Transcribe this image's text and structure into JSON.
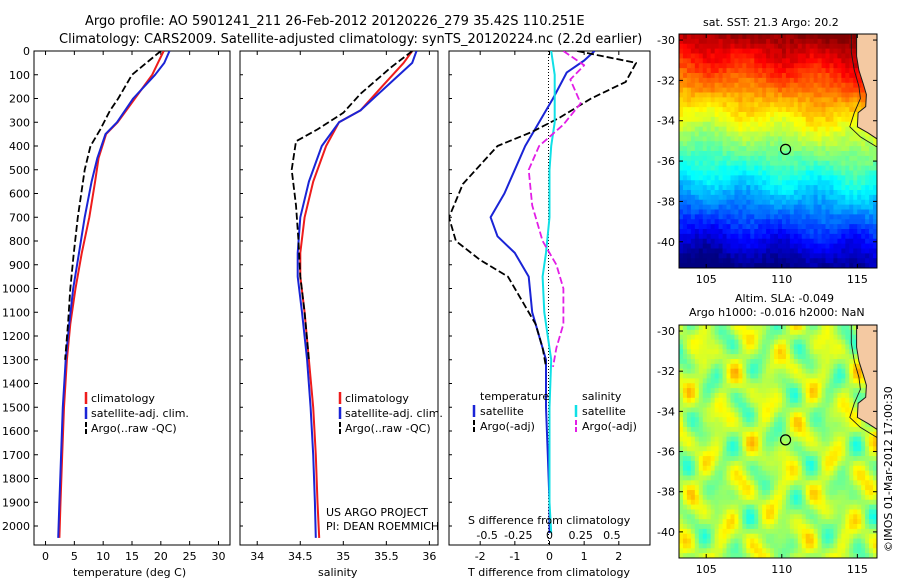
{
  "title_line1": "Argo profile: AO 5901241_211 26-Feb-2012 20120226_279 35.42S 110.251E",
  "title_line2": "Climatology: CARS2009. Satellite-adjusted climatology: synTS_20120224.nc (2.2d earlier)",
  "credit": "©IMOS 01-Mar-2012 17:00:30",
  "colors": {
    "clim": "#ee1c1c",
    "sat": "#1a24d6",
    "argo": "#000000",
    "sat_s": "#10e0e6",
    "argo_s": "#e21ee6",
    "grid": "#555555",
    "land": "#f4c9a2",
    "coast": "#1a1a1a"
  },
  "chart_data": [
    {
      "type": "line",
      "name": "temperature",
      "xlabel": "temperature (deg C)",
      "ylabel": "",
      "xlim": [
        -2,
        32
      ],
      "ylim": [
        2080,
        0
      ],
      "xticks": [
        0,
        5,
        10,
        15,
        20,
        25,
        30
      ],
      "yticks": [
        0,
        100,
        200,
        300,
        400,
        500,
        600,
        700,
        800,
        900,
        1000,
        1100,
        1200,
        1300,
        1400,
        1500,
        1600,
        1700,
        1800,
        1900,
        2000
      ],
      "legend": [
        "climatology",
        "satellite-adj. clim.",
        "Argo(..raw -QC)"
      ],
      "series": [
        {
          "name": "climatology",
          "style": "solid",
          "color": "clim",
          "points": [
            [
              20.5,
              0
            ],
            [
              19.5,
              50
            ],
            [
              18.5,
              100
            ],
            [
              15.5,
              200
            ],
            [
              12.5,
              300
            ],
            [
              10.5,
              350
            ],
            [
              9.2,
              450
            ],
            [
              8.6,
              550
            ],
            [
              7.6,
              700
            ],
            [
              6.3,
              850
            ],
            [
              5.2,
              1000
            ],
            [
              4.3,
              1150
            ],
            [
              3.7,
              1300
            ],
            [
              3.2,
              1500
            ],
            [
              2.9,
              1700
            ],
            [
              2.6,
              1900
            ],
            [
              2.4,
              2050
            ]
          ]
        },
        {
          "name": "satellite-adj. clim.",
          "style": "solid",
          "color": "sat",
          "points": [
            [
              21.5,
              0
            ],
            [
              20.6,
              50
            ],
            [
              19.0,
              100
            ],
            [
              15.2,
              200
            ],
            [
              12.4,
              300
            ],
            [
              10.4,
              350
            ],
            [
              9.0,
              450
            ],
            [
              8.0,
              550
            ],
            [
              6.8,
              700
            ],
            [
              5.8,
              850
            ],
            [
              4.8,
              1000
            ],
            [
              4.1,
              1150
            ],
            [
              3.5,
              1300
            ],
            [
              3.0,
              1500
            ],
            [
              2.7,
              1700
            ],
            [
              2.4,
              1900
            ],
            [
              2.2,
              2050
            ]
          ]
        },
        {
          "name": "Argo(..raw -QC)",
          "style": "dash",
          "color": "argo",
          "points": [
            [
              20.0,
              0
            ],
            [
              18.0,
              40
            ],
            [
              15.0,
              100
            ],
            [
              12.6,
              200
            ],
            [
              11.2,
              250
            ],
            [
              9.5,
              330
            ],
            [
              7.8,
              400
            ],
            [
              6.8,
              500
            ],
            [
              5.6,
              700
            ],
            [
              4.9,
              850
            ],
            [
              4.3,
              1000
            ],
            [
              3.9,
              1150
            ],
            [
              3.4,
              1300
            ]
          ]
        }
      ]
    },
    {
      "type": "line",
      "name": "salinity",
      "xlabel": "salinity",
      "ylabel": "",
      "xlim": [
        33.8,
        36.1
      ],
      "ylim": [
        2080,
        0
      ],
      "xticks": [
        34,
        34.5,
        35,
        35.5,
        36
      ],
      "legend": [
        "climatology",
        "satellite-adj. clim.",
        "Argo(..raw -QC)"
      ],
      "annotation": [
        "US ARGO PROJECT",
        "PI: DEAN ROEMMICH"
      ],
      "series": [
        {
          "name": "climatology",
          "style": "solid",
          "color": "clim",
          "points": [
            [
              35.8,
              0
            ],
            [
              35.7,
              50
            ],
            [
              35.45,
              150
            ],
            [
              35.2,
              250
            ],
            [
              34.95,
              300
            ],
            [
              34.8,
              400
            ],
            [
              34.65,
              550
            ],
            [
              34.55,
              700
            ],
            [
              34.5,
              850
            ],
            [
              34.5,
              950
            ],
            [
              34.55,
              1100
            ],
            [
              34.6,
              1300
            ],
            [
              34.65,
              1500
            ],
            [
              34.68,
              1700
            ],
            [
              34.7,
              1900
            ],
            [
              34.72,
              2050
            ]
          ]
        },
        {
          "name": "satellite-adj. clim.",
          "style": "solid",
          "color": "sat",
          "points": [
            [
              35.85,
              0
            ],
            [
              35.8,
              50
            ],
            [
              35.5,
              150
            ],
            [
              35.2,
              250
            ],
            [
              34.95,
              300
            ],
            [
              34.75,
              400
            ],
            [
              34.6,
              550
            ],
            [
              34.5,
              700
            ],
            [
              34.47,
              850
            ],
            [
              34.47,
              950
            ],
            [
              34.52,
              1100
            ],
            [
              34.58,
              1300
            ],
            [
              34.62,
              1500
            ],
            [
              34.65,
              1700
            ],
            [
              34.67,
              1900
            ],
            [
              34.68,
              2050
            ]
          ]
        },
        {
          "name": "Argo(..raw -QC)",
          "style": "dash",
          "color": "argo",
          "points": [
            [
              35.8,
              0
            ],
            [
              35.55,
              70
            ],
            [
              35.2,
              180
            ],
            [
              35.0,
              260
            ],
            [
              34.7,
              330
            ],
            [
              34.45,
              380
            ],
            [
              34.4,
              500
            ],
            [
              34.45,
              650
            ],
            [
              34.48,
              800
            ],
            [
              34.5,
              950
            ],
            [
              34.55,
              1100
            ],
            [
              34.6,
              1300
            ]
          ]
        }
      ]
    },
    {
      "type": "line",
      "name": "differences",
      "xlabel": "T difference from climatology",
      "xlabel2": "S difference from climatology",
      "xlim": [
        -2.9,
        2.9
      ],
      "ylim": [
        2080,
        0
      ],
      "xticks": [
        -2,
        -1,
        0,
        1,
        2
      ],
      "xticks2": [
        "-0.5",
        "-0.25",
        "0",
        "0.25",
        "0.5"
      ],
      "legend_left_head": "temperature",
      "legend_right_head": "salinity",
      "legend_left": [
        "satellite",
        "Argo(-adj)"
      ],
      "legend_right": [
        "satellite",
        "Argo(-adj)"
      ],
      "series": [
        {
          "name": "temperature satellite",
          "style": "solid",
          "color": "sat",
          "points": [
            [
              1.3,
              0
            ],
            [
              1.0,
              40
            ],
            [
              0.5,
              90
            ],
            [
              0.1,
              200
            ],
            [
              -0.3,
              300
            ],
            [
              -0.7,
              400
            ],
            [
              -1.0,
              500
            ],
            [
              -1.3,
              600
            ],
            [
              -1.7,
              700
            ],
            [
              -1.5,
              780
            ],
            [
              -1.0,
              850
            ],
            [
              -0.6,
              950
            ],
            [
              -0.5,
              1100
            ],
            [
              -0.3,
              1200
            ],
            [
              -0.1,
              1300
            ],
            [
              -0.1,
              1500
            ],
            [
              -0.05,
              1700
            ],
            [
              0.0,
              1900
            ],
            [
              0.0,
              2030
            ]
          ]
        },
        {
          "name": "temperature Argo(-adj)",
          "style": "dash",
          "color": "argo",
          "points": [
            [
              0.8,
              0
            ],
            [
              2.5,
              50
            ],
            [
              2.2,
              130
            ],
            [
              1.2,
              200
            ],
            [
              0.3,
              280
            ],
            [
              -0.5,
              340
            ],
            [
              -1.5,
              400
            ],
            [
              -2.5,
              560
            ],
            [
              -2.9,
              700
            ],
            [
              -2.7,
              800
            ],
            [
              -2.0,
              880
            ],
            [
              -1.2,
              950
            ],
            [
              -0.8,
              1050
            ],
            [
              -0.4,
              1150
            ],
            [
              -0.2,
              1250
            ],
            [
              -0.1,
              1330
            ]
          ]
        },
        {
          "name": "salinity satellite",
          "style": "solid",
          "color": "sat_s",
          "points": [
            [
              0.05,
              0
            ],
            [
              0.15,
              100
            ],
            [
              0.15,
              300
            ],
            [
              0.05,
              400
            ],
            [
              0.0,
              500
            ],
            [
              0.0,
              700
            ],
            [
              -0.1,
              850
            ],
            [
              -0.2,
              950
            ],
            [
              -0.15,
              1100
            ],
            [
              0.05,
              1300
            ],
            [
              0.0,
              1500
            ],
            [
              0.0,
              1700
            ],
            [
              0.0,
              1900
            ],
            [
              0.05,
              2030
            ]
          ]
        },
        {
          "name": "salinity Argo(-adj)",
          "style": "dash",
          "color": "argo_s",
          "points": [
            [
              0.4,
              0
            ],
            [
              1.0,
              60
            ],
            [
              0.6,
              120
            ],
            [
              0.9,
              220
            ],
            [
              0.4,
              310
            ],
            [
              -0.3,
              400
            ],
            [
              -0.6,
              500
            ],
            [
              -0.5,
              650
            ],
            [
              -0.2,
              800
            ],
            [
              0.2,
              900
            ],
            [
              0.4,
              1000
            ],
            [
              0.4,
              1150
            ],
            [
              0.2,
              1250
            ],
            [
              0.1,
              1330
            ]
          ]
        }
      ]
    },
    {
      "type": "heatmap",
      "name": "sst_map",
      "title": "sat. SST: 21.3  Argo: 20.2",
      "xlim": [
        103.2,
        116.3
      ],
      "ylim": [
        -41.3,
        -29.7
      ],
      "xticks": [
        105,
        110,
        115
      ],
      "yticks": [
        -30,
        -32,
        -34,
        -36,
        -38,
        -40
      ],
      "marker": [
        110.25,
        -35.42
      ]
    },
    {
      "type": "heatmap",
      "name": "sla_map",
      "title_line1": "Altim. SLA: -0.049",
      "title_line2": "Argo h1000: -0.016 h2000: NaN",
      "xlim": [
        103.2,
        116.3
      ],
      "ylim": [
        -41.3,
        -29.7
      ],
      "xticks": [
        105,
        110,
        115
      ],
      "yticks": [
        -30,
        -32,
        -34,
        -36,
        -38,
        -40
      ],
      "marker": [
        110.25,
        -35.42
      ]
    }
  ]
}
